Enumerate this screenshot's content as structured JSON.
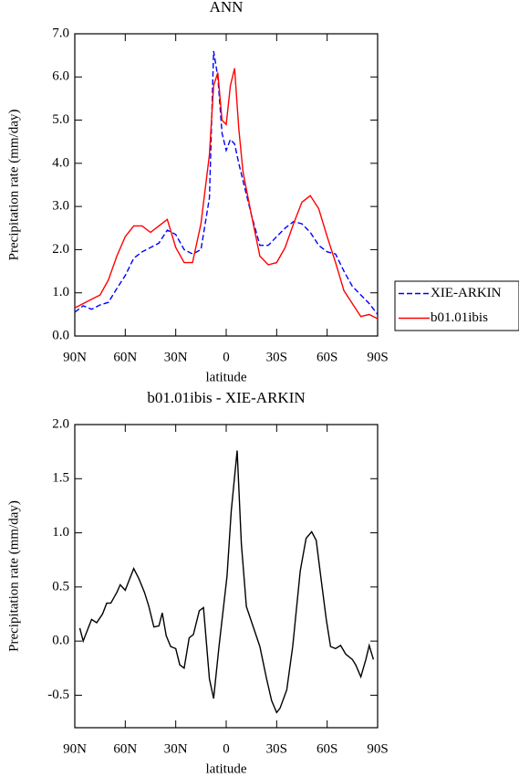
{
  "chart_data": [
    {
      "type": "line",
      "title": "ANN",
      "xlabel": "latitude",
      "ylabel": "Precipitation rate (mm/day)",
      "x": [
        90,
        85,
        80,
        75,
        70,
        65,
        60,
        55,
        50,
        45,
        40,
        35,
        30,
        25,
        20,
        15,
        10,
        7.5,
        5,
        2.5,
        0,
        -2.5,
        -5,
        -7.5,
        -10,
        -15,
        -20,
        -25,
        -30,
        -35,
        -40,
        -45,
        -50,
        -55,
        -60,
        -65,
        -70,
        -75,
        -80,
        -85,
        -90
      ],
      "series": [
        {
          "name": "XIE-ARKIN",
          "color": "#0000ff",
          "line_style": "dashed",
          "values": [
            0.55,
            0.7,
            0.62,
            0.72,
            0.78,
            1.1,
            1.4,
            1.8,
            1.95,
            2.05,
            2.15,
            2.45,
            2.35,
            2.0,
            1.9,
            2.0,
            3.2,
            6.6,
            6.0,
            4.7,
            4.3,
            4.55,
            4.45,
            4.0,
            3.6,
            2.8,
            2.1,
            2.1,
            2.3,
            2.5,
            2.65,
            2.6,
            2.4,
            2.1,
            1.95,
            1.9,
            1.5,
            1.15,
            0.95,
            0.75,
            0.5
          ]
        },
        {
          "name": "b01.01ibis",
          "color": "#ff0000",
          "line_style": "solid",
          "values": [
            0.65,
            0.75,
            0.85,
            0.95,
            1.3,
            1.85,
            2.3,
            2.55,
            2.55,
            2.4,
            2.55,
            2.7,
            2.05,
            1.7,
            1.7,
            2.6,
            4.2,
            5.8,
            6.1,
            5.0,
            4.9,
            5.8,
            6.2,
            4.8,
            3.8,
            2.8,
            1.85,
            1.65,
            1.7,
            2.05,
            2.6,
            3.1,
            3.25,
            2.95,
            2.3,
            1.7,
            1.05,
            0.75,
            0.45,
            0.5,
            0.4
          ]
        }
      ],
      "xlim": [
        90,
        -90
      ],
      "xticks": [
        {
          "value": 90,
          "label": "90N"
        },
        {
          "value": 60,
          "label": "60N"
        },
        {
          "value": 30,
          "label": "30N"
        },
        0,
        {
          "value": -30,
          "label": "30S"
        },
        {
          "value": -60,
          "label": "60S"
        },
        {
          "value": -90,
          "label": "90S"
        }
      ],
      "ylim": [
        0,
        7
      ],
      "yticks": [
        {
          "value": 0,
          "label": "0.0"
        },
        {
          "value": 1,
          "label": "1.0"
        },
        {
          "value": 2,
          "label": "2.0"
        },
        {
          "value": 3,
          "label": "3.0"
        },
        {
          "value": 4,
          "label": "4.0"
        },
        {
          "value": 5,
          "label": "5.0"
        },
        {
          "value": 6,
          "label": "6.0"
        },
        {
          "value": 7,
          "label": "7.0"
        }
      ],
      "legend": "right"
    },
    {
      "type": "line",
      "title": "b01.01ibis - XIE-ARKIN",
      "xlabel": "latitude",
      "ylabel": "Precipitation rate (mm/day)",
      "x": [
        87,
        85,
        80,
        77,
        73.5,
        71,
        68.6,
        65,
        63,
        60,
        55,
        52,
        48.6,
        46,
        43,
        40,
        38,
        35.7,
        33,
        30,
        27.6,
        25,
        22,
        19.5,
        16,
        13.5,
        10,
        7.5,
        4.3,
        -0.5,
        -3,
        -6.5,
        -9,
        -12,
        -20,
        -24,
        -27,
        -30,
        -32,
        -36,
        -39.5,
        -44,
        -47.5,
        -50.8,
        -53.5,
        -56,
        -59.5,
        -62,
        -65,
        -68,
        -71,
        -75,
        -77,
        -80,
        -83,
        -85,
        -87.5
      ],
      "color": "#000000",
      "values": [
        0.12,
        0.0,
        0.2,
        0.17,
        0.25,
        0.35,
        0.35,
        0.45,
        0.52,
        0.47,
        0.67,
        0.58,
        0.45,
        0.32,
        0.13,
        0.14,
        0.26,
        0.05,
        -0.05,
        -0.07,
        -0.22,
        -0.25,
        0.03,
        0.06,
        0.28,
        0.31,
        -0.35,
        -0.53,
        -0.05,
        0.6,
        1.2,
        1.76,
        0.9,
        0.32,
        -0.05,
        -0.35,
        -0.55,
        -0.66,
        -0.62,
        -0.45,
        -0.05,
        0.65,
        0.95,
        1.01,
        0.93,
        0.62,
        0.2,
        -0.05,
        -0.07,
        -0.04,
        -0.12,
        -0.17,
        -0.22,
        -0.33,
        -0.17,
        -0.04,
        -0.17
      ],
      "xlim": [
        90,
        -90
      ],
      "xticks": [
        {
          "value": 90,
          "label": "90N"
        },
        {
          "value": 60,
          "label": "60N"
        },
        {
          "value": 30,
          "label": "30N"
        },
        0,
        {
          "value": -30,
          "label": "30S"
        },
        {
          "value": -60,
          "label": "60S"
        },
        {
          "value": -90,
          "label": "90S"
        }
      ],
      "ylim": [
        -0.8,
        2.0
      ],
      "yticks": [
        -0.5,
        {
          "value": 0,
          "label": "0.0"
        },
        0.5,
        {
          "value": 1,
          "label": "1.0"
        },
        1.5,
        {
          "value": 2,
          "label": "2.0"
        }
      ]
    }
  ]
}
